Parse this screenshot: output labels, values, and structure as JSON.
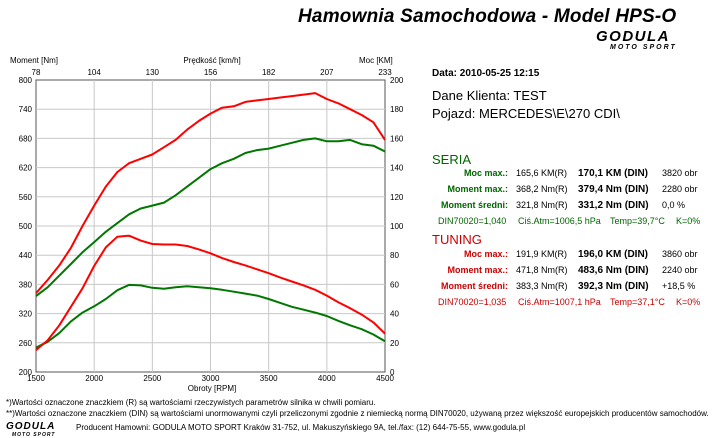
{
  "header": {
    "title": "Hamownia Samochodowa   -   Model HPS-O",
    "logo_main": "GODULA",
    "logo_sub": "MOTO SPORT"
  },
  "info": {
    "datetime": "Data: 2010-05-25  12:15",
    "client": "Dane Klienta: TEST",
    "vehicle": "Pojazd: MERCEDES\\E\\270 CDI\\"
  },
  "seria": {
    "heading": "SERIA",
    "rows": [
      {
        "label": "Moc max.:",
        "val_r": "165,6 KM(R)",
        "val_din": "170,1 KM (DIN)",
        "extra": "3820 obr"
      },
      {
        "label": "Moment max.:",
        "val_r": "368,2 Nm(R)",
        "val_din": "379,4 Nm (DIN)",
        "extra": "2280 obr"
      },
      {
        "label": "Moment średni:",
        "val_r": "321,8 Nm(R)",
        "val_din": "331,2 Nm (DIN)",
        "extra": "0,0 %"
      }
    ],
    "din": "DIN70020=1,040",
    "atm": "Ciś.Atm=1006,5 hPa",
    "temp": "Temp=39,7°C",
    "k": "K=0%"
  },
  "tuning": {
    "heading": "TUNING",
    "rows": [
      {
        "label": "Moc max.:",
        "val_r": "191,9 KM(R)",
        "val_din": "196,0 KM (DIN)",
        "extra": "3860 obr"
      },
      {
        "label": "Moment max.:",
        "val_r": "471,8 Nm(R)",
        "val_din": "483,6 Nm (DIN)",
        "extra": "2240 obr"
      },
      {
        "label": "Moment średni:",
        "val_r": "383,3 Nm(R)",
        "val_din": "392,3 Nm (DIN)",
        "extra": "+18,5 %"
      }
    ],
    "din": "DIN70020=1,035",
    "atm": "Ciś.Atm=1007,1 hPa",
    "temp": "Temp=37,1°C",
    "k": "K=0%"
  },
  "footer": {
    "note1": "*)Wartości oznaczone znaczkiem (R) są wartościami rzeczywistych parametrów silnika w chwili pomiaru.",
    "note2": "**)Wartości oznaczone znaczkiem (DIN) są wartościami unormowanymi czyli przeliczonymi zgodnie z niemiecką normą DIN70020, używaną przez większość europejskich producentów samochodów.",
    "producer": "Producent Hamowni: GODULA MOTO SPORT Kraków 31-752, ul. Makuszyńskiego 9A, tel./fax: (12) 644-75-55, www.godula.pl",
    "logo_main": "GODULA",
    "logo_sub": "MOTO SPORT"
  },
  "colors": {
    "seria": "#007700",
    "tuning": "#ff0000",
    "seria_text": "#006600",
    "tuning_text": "#cc0000"
  },
  "chart_data": {
    "type": "line",
    "left_axis_label": "Moment [Nm]",
    "right_axis_label": "Moc [KM]",
    "top_axis_label": "Prędkość [km/h]",
    "xlabel": "Obroty [RPM]",
    "x_range": [
      1500,
      4500
    ],
    "x_ticks": [
      "1500",
      "2000",
      "2500",
      "3000",
      "3500",
      "4000",
      "4500"
    ],
    "top_ticks": [
      "78",
      "104",
      "130",
      "156",
      "182",
      "207",
      "233"
    ],
    "left_range": [
      200,
      800
    ],
    "left_ticks": [
      "200",
      "260",
      "320",
      "380",
      "440",
      "500",
      "560",
      "620",
      "680",
      "740",
      "800"
    ],
    "right_range": [
      0,
      200
    ],
    "right_ticks": [
      "0",
      "20",
      "40",
      "60",
      "80",
      "100",
      "120",
      "140",
      "160",
      "180",
      "200"
    ],
    "grid": true,
    "series": [
      {
        "name": "Moc SERIA",
        "axis": "right",
        "color": "#007700",
        "x": [
          1500,
          1600,
          1700,
          1800,
          1900,
          2000,
          2100,
          2200,
          2300,
          2400,
          2500,
          2600,
          2700,
          2800,
          2900,
          3000,
          3100,
          3200,
          3300,
          3400,
          3500,
          3600,
          3700,
          3800,
          3900,
          4000,
          4100,
          4200,
          4300,
          4400,
          4500
        ],
        "y": [
          52,
          58,
          66,
          74,
          82,
          89,
          96,
          102,
          108,
          112,
          114,
          116,
          121,
          127,
          133,
          139,
          143,
          146,
          150,
          152,
          153,
          155,
          157,
          159,
          160,
          158,
          158,
          159,
          156,
          155,
          151
        ]
      },
      {
        "name": "Moment SERIA",
        "axis": "left",
        "color": "#007700",
        "x": [
          1500,
          1600,
          1700,
          1800,
          1900,
          2000,
          2100,
          2200,
          2300,
          2400,
          2500,
          2600,
          2700,
          2800,
          2900,
          3000,
          3100,
          3200,
          3300,
          3400,
          3500,
          3600,
          3700,
          3800,
          3900,
          4000,
          4100,
          4200,
          4300,
          4400,
          4500
        ],
        "y": [
          250,
          262,
          280,
          304,
          322,
          335,
          350,
          368,
          379,
          378,
          373,
          371,
          374,
          376,
          374,
          372,
          369,
          365,
          361,
          357,
          350,
          342,
          334,
          328,
          322,
          315,
          305,
          296,
          288,
          277,
          263
        ]
      },
      {
        "name": "Moc TUNING",
        "axis": "right",
        "color": "#ff0000",
        "x": [
          1500,
          1600,
          1700,
          1800,
          1900,
          2000,
          2100,
          2200,
          2300,
          2400,
          2500,
          2600,
          2700,
          2800,
          2900,
          3000,
          3100,
          3200,
          3300,
          3400,
          3500,
          3600,
          3700,
          3800,
          3900,
          4000,
          4100,
          4200,
          4300,
          4400,
          4500
        ],
        "y": [
          54,
          63,
          73,
          85,
          100,
          114,
          127,
          137,
          143,
          146,
          149,
          154,
          159,
          166,
          172,
          177,
          181,
          182,
          185,
          186,
          187,
          188,
          189,
          190,
          191,
          187,
          184,
          180,
          176,
          171,
          159
        ]
      },
      {
        "name": "Moment TUNING",
        "axis": "left",
        "color": "#ff0000",
        "x": [
          1500,
          1600,
          1700,
          1800,
          1900,
          2000,
          2100,
          2200,
          2300,
          2400,
          2500,
          2600,
          2700,
          2800,
          2900,
          3000,
          3100,
          3200,
          3300,
          3400,
          3500,
          3600,
          3700,
          3800,
          3900,
          4000,
          4100,
          4200,
          4300,
          4400,
          4500
        ],
        "y": [
          245,
          265,
          296,
          334,
          372,
          418,
          456,
          478,
          480,
          470,
          463,
          462,
          462,
          459,
          452,
          444,
          434,
          426,
          419,
          411,
          403,
          394,
          386,
          378,
          369,
          357,
          343,
          331,
          318,
          302,
          279
        ]
      }
    ]
  }
}
